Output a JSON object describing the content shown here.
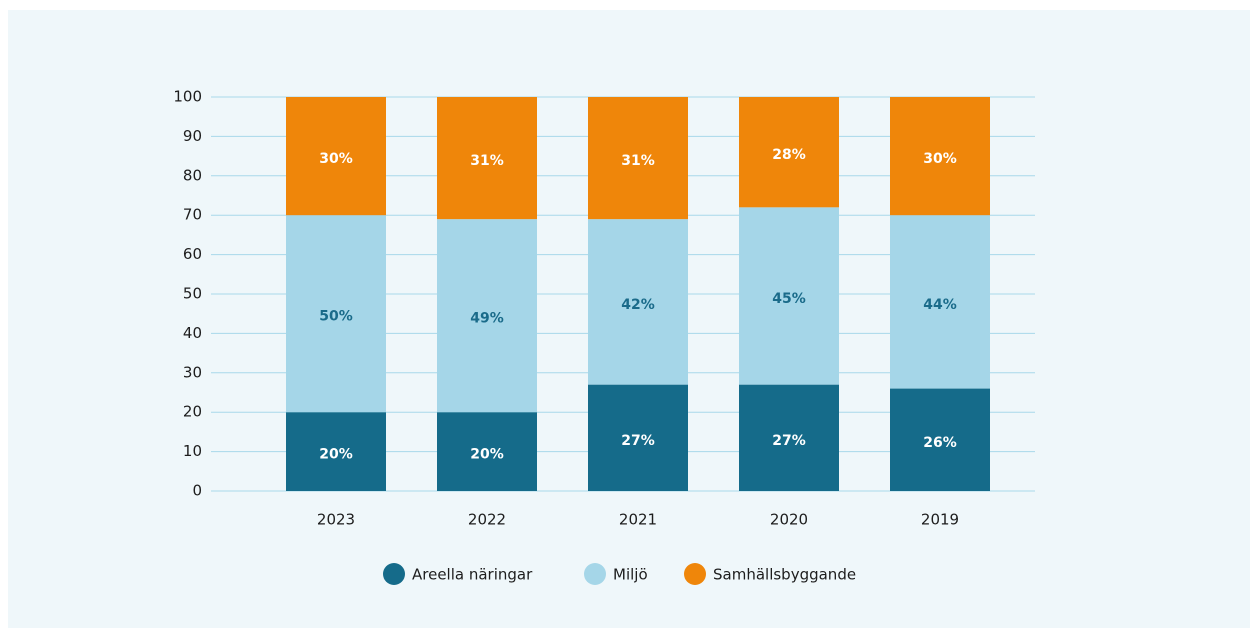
{
  "chart_data": {
    "type": "bar",
    "stacked": true,
    "categories": [
      "2023",
      "2022",
      "2021",
      "2020",
      "2019"
    ],
    "series": [
      {
        "name": "Areella näringar",
        "color": "#156b8a",
        "values": [
          20,
          20,
          27,
          27,
          26
        ],
        "value_labels": [
          "20%",
          "20%",
          "27%",
          "27%",
          "26%"
        ]
      },
      {
        "name": "Miljö",
        "color": "#a5d6e8",
        "values": [
          50,
          49,
          42,
          45,
          44
        ],
        "value_labels": [
          "50%",
          "49%",
          "42%",
          "45%",
          "44%"
        ]
      },
      {
        "name": "Samhällsbyggande",
        "color": "#ef860a",
        "values": [
          30,
          31,
          31,
          28,
          30
        ],
        "value_labels": [
          "30%",
          "31%",
          "31%",
          "28%",
          "30%"
        ]
      }
    ],
    "ylim": [
      0,
      100
    ],
    "yticks": [
      0,
      10,
      20,
      30,
      40,
      50,
      60,
      70,
      80,
      90,
      100
    ],
    "grid": true,
    "legend": "bottom"
  }
}
